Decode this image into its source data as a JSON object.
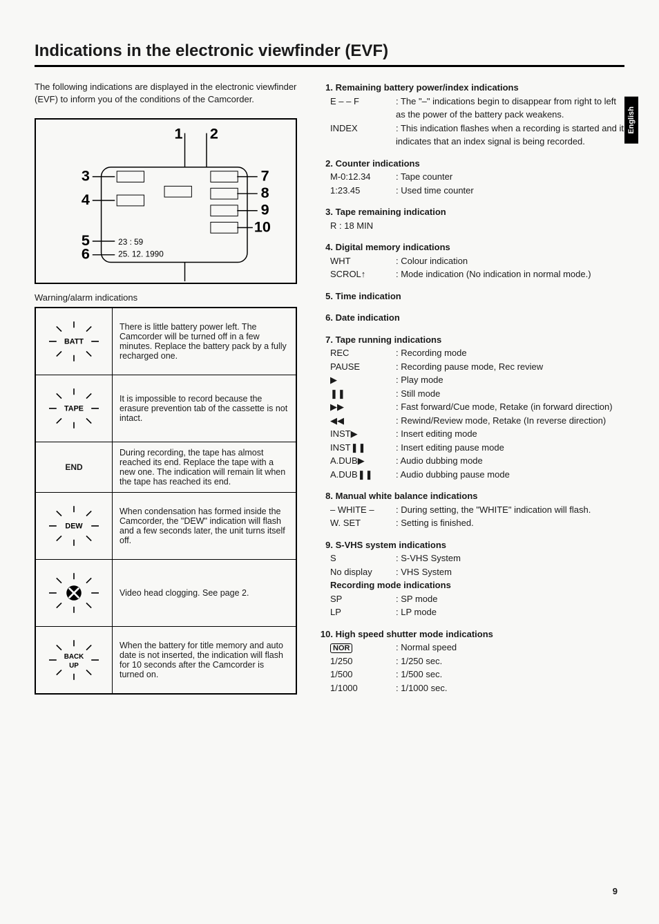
{
  "title": "Indications in the electronic viewfinder (EVF)",
  "intro": "The following indications are displayed in the electronic viewfinder (EVF) to inform you of the conditions of the Camcorder.",
  "side_tab": "English",
  "page_number": "9",
  "diagram": {
    "numbers": [
      "1",
      "2",
      "3",
      "4",
      "5",
      "6",
      "7",
      "8",
      "9",
      "10"
    ],
    "time_example": "23 : 59",
    "date_example": "25. 12. 1990"
  },
  "warning_heading": "Warning/alarm indications",
  "warnings": [
    {
      "label": "BATT",
      "has_rays": true,
      "desc": "There is little battery power left. The Camcorder will be turned off in a few minutes. Replace the battery pack by a fully recharged one."
    },
    {
      "label": "TAPE",
      "has_rays": true,
      "desc": "It is impossible to record because the erasure prevention tab of the cassette is not intact."
    },
    {
      "label": "END",
      "has_rays": false,
      "desc": "During recording, the tape has almost reached its end. Replace the tape with a new one. The indication will remain lit when the tape has reached its end."
    },
    {
      "label": "DEW",
      "has_rays": true,
      "desc": "When condensation has formed inside the Camcorder, the \"DEW\" indication will flash and a few seconds later, the unit turns itself off."
    },
    {
      "label": "CLOG",
      "has_rays": true,
      "is_clog": true,
      "desc": "Video head clogging. See page 2."
    },
    {
      "label": "BACK UP",
      "has_rays": true,
      "is_backup": true,
      "desc": "When the battery for title memory and auto date is not inserted, the indication will flash for 10 seconds after the Camcorder is turned on."
    }
  ],
  "sections": [
    {
      "num": "1.",
      "title": "Remaining battery power/index indications",
      "items": [
        {
          "key": "E – – F",
          "desc": ": The \"–\" indications begin to disappear from right to left as the power of the battery pack weakens."
        },
        {
          "key": "INDEX",
          "desc": ": This indication flashes when a recording is started and it indicates that an index signal is being recorded."
        }
      ]
    },
    {
      "num": "2.",
      "title": "Counter indications",
      "items": [
        {
          "key": "M-0:12.34",
          "desc": ": Tape counter"
        },
        {
          "key": "1:23.45",
          "desc": ": Used time counter"
        }
      ]
    },
    {
      "num": "3.",
      "title": "Tape remaining indication",
      "items": [
        {
          "key": "R : 18 MIN",
          "desc": ""
        }
      ]
    },
    {
      "num": "4.",
      "title": "Digital memory indications",
      "items": [
        {
          "key": "WHT",
          "desc": ": Colour indication"
        },
        {
          "key": "SCROL↑",
          "desc": ": Mode indication (No indication in normal mode.)"
        }
      ]
    },
    {
      "num": "5.",
      "title": "Time indication",
      "items": []
    },
    {
      "num": "6.",
      "title": "Date indication",
      "items": []
    },
    {
      "num": "7.",
      "title": "Tape running indications",
      "items": [
        {
          "key": "REC",
          "desc": ": Recording mode"
        },
        {
          "key": "PAUSE",
          "desc": ": Recording pause mode, Rec review"
        },
        {
          "key": "▶",
          "desc": ": Play mode",
          "sym": true
        },
        {
          "key": "❚❚",
          "desc": ": Still mode",
          "sym": true
        },
        {
          "key": "▶▶",
          "desc": ": Fast forward/Cue mode, Retake (in forward direction)",
          "sym": true
        },
        {
          "key": "◀◀",
          "desc": ": Rewind/Review mode, Retake (In reverse direction)",
          "sym": true
        },
        {
          "key": "INST▶",
          "desc": ": Insert editing mode"
        },
        {
          "key": "INST❚❚",
          "desc": ": Insert editing pause mode"
        },
        {
          "key": "A.DUB▶",
          "desc": ": Audio dubbing mode"
        },
        {
          "key": "A.DUB❚❚",
          "desc": ": Audio dubbing pause mode"
        }
      ]
    },
    {
      "num": "8.",
      "title": "Manual white balance indications",
      "items": [
        {
          "key": "WHITE",
          "desc": ": During setting, the \"WHITE\" indication will flash.",
          "rays": true
        },
        {
          "key": "W. SET",
          "desc": ": Setting is finished."
        }
      ]
    },
    {
      "num": "9.",
      "title": "S-VHS system indications",
      "items": [
        {
          "key": "S",
          "desc": ": S-VHS System"
        },
        {
          "key": "No display",
          "desc": ": VHS System"
        }
      ],
      "subtitle": "Recording mode indications",
      "subitems": [
        {
          "key": "SP",
          "desc": ": SP mode"
        },
        {
          "key": "LP",
          "desc": ": LP mode"
        }
      ]
    },
    {
      "num": "10.",
      "title": "High speed shutter mode indications",
      "items": [
        {
          "key": "NOR",
          "desc": ": Normal speed",
          "boxed": true
        },
        {
          "key": "1/250",
          "desc": ": 1/250 sec."
        },
        {
          "key": "1/500",
          "desc": ": 1/500 sec."
        },
        {
          "key": "1/1000",
          "desc": ": 1/1000 sec."
        }
      ]
    }
  ]
}
